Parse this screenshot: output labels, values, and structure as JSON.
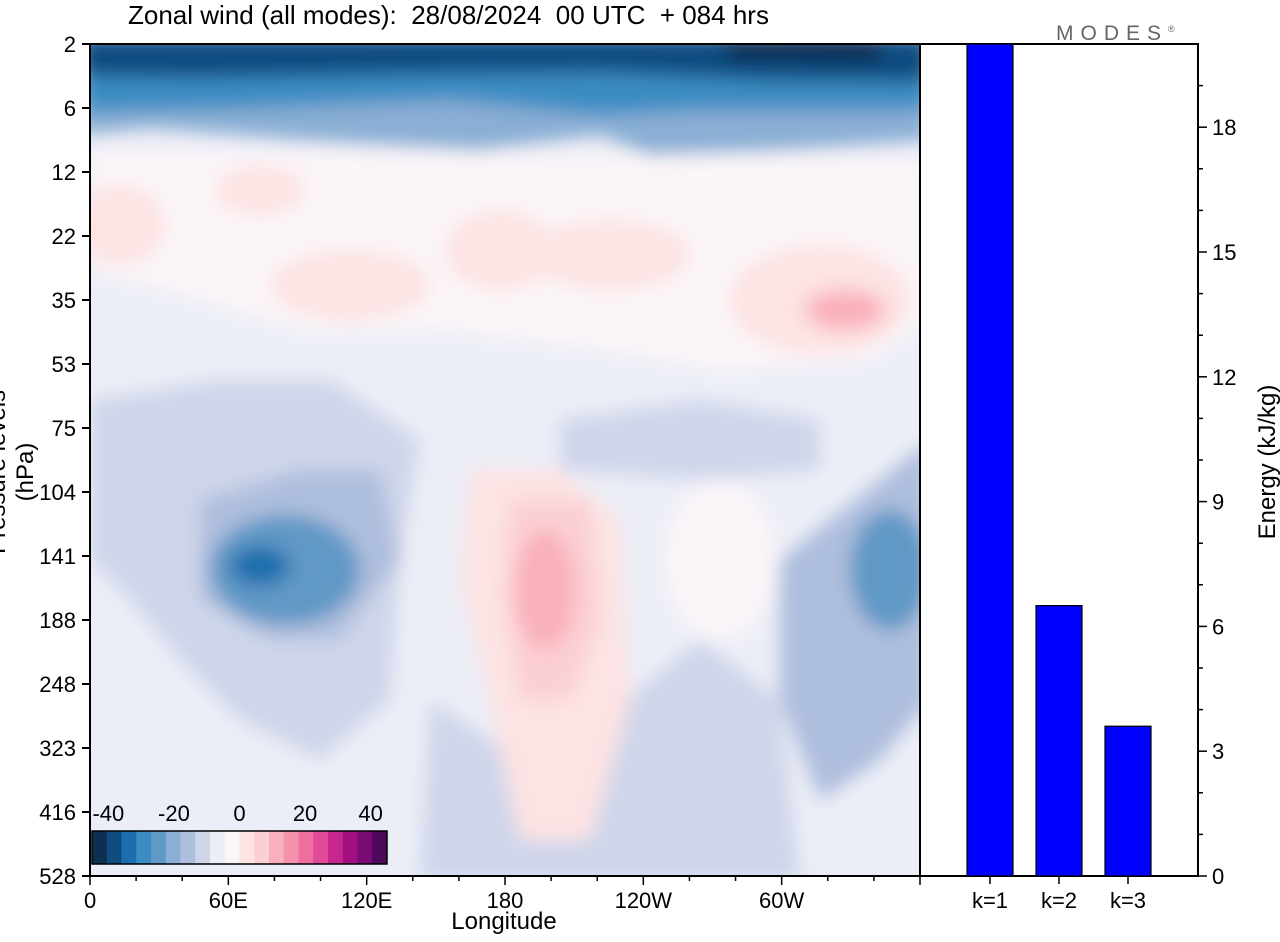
{
  "title": "Zonal wind (all modes):  28/08/2024  00 UTC  + 084 hrs",
  "brand": "MODES",
  "brand_mark": "®",
  "chart_data": [
    {
      "type": "heatmap",
      "xlabel": "Longitude",
      "ylabel": "Pressure levels (hPa)",
      "x_ticks": [
        "0",
        "60E",
        "120E",
        "180",
        "120W",
        "60W"
      ],
      "y_ticks": [
        "2",
        "6",
        "12",
        "22",
        "35",
        "53",
        "75",
        "104",
        "141",
        "188",
        "248",
        "323",
        "416",
        "528"
      ],
      "colorbar": {
        "tick_labels": [
          "-40",
          "-20",
          "0",
          "20",
          "40"
        ],
        "range": [
          -45,
          45
        ],
        "colors": [
          "#0d2f52",
          "#0f4c80",
          "#1b6fae",
          "#3a8cc3",
          "#6098c6",
          "#8aaed4",
          "#aebedd",
          "#cfd6ea",
          "#eceef7",
          "#fbf5f8",
          "#fde3e3",
          "#fbcfd3",
          "#f9b0bc",
          "#f492ab",
          "#ee6ea1",
          "#e04a98",
          "#c6268e",
          "#a10f82",
          "#790a76",
          "#4d0a5a"
        ]
      },
      "features": [
        {
          "lon": 180,
          "plev": 2,
          "wind": -38
        },
        {
          "lon": 100,
          "plev": 141,
          "wind": -27
        },
        {
          "lon": 190,
          "plev": 141,
          "wind": 11
        },
        {
          "lon": 298,
          "plev": 35,
          "wind": 10
        },
        {
          "lon": 352,
          "plev": 141,
          "wind": -20
        }
      ]
    },
    {
      "type": "bar",
      "categories": [
        "k=1",
        "k=2",
        "k=3"
      ],
      "values": [
        20.0,
        6.5,
        3.6
      ],
      "ylabel": "Energy (kJ/kg)",
      "y_ticks": [
        "0",
        "3",
        "6",
        "9",
        "12",
        "15",
        "18"
      ],
      "ylim": [
        0,
        20
      ],
      "bar_color": "#0000ff"
    }
  ]
}
